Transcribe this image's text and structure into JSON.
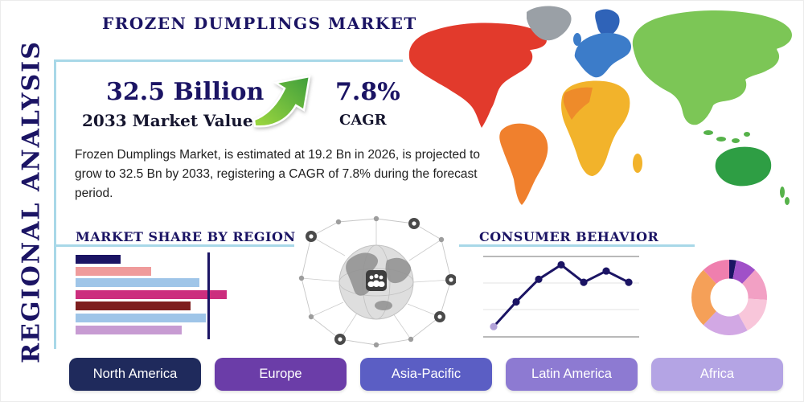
{
  "page": {
    "vertical_label": "REGIONAL ANALYSIS",
    "title": "FROZEN DUMPLINGS MARKET",
    "accent_line_color": "#a8d8e8",
    "brand_navy": "#1b1464"
  },
  "stats": {
    "market_value": "32.5 Billion",
    "market_value_label": "2033 Market Value",
    "cagr_value": "7.8%",
    "cagr_label": "CAGR",
    "description": "Frozen Dumplings Market, is estimated at 19.2 Bn in 2026, is projected to grow to 32.5 Bn by 2033, registering a CAGR of 7.8% during the forecast period."
  },
  "icons": {
    "growth_arrow": "curved-up-right-green-arrow",
    "globe_network": "globe-with-connected-location-pins"
  },
  "sections": {
    "market_share_heading": "MARKET SHARE BY REGION",
    "consumer_behavior_heading": "CONSUMER BEHAVIOR"
  },
  "chart_data": [
    {
      "type": "bar",
      "title": "MARKET SHARE BY REGION",
      "orientation": "horizontal",
      "values": [
        30,
        50,
        82,
        100,
        76,
        86,
        70
      ],
      "value_unit": "relative length, percent of longest bar (axis unlabeled in source)",
      "colors": [
        "#1b1464",
        "#ef9b9b",
        "#9fc5e8",
        "#cc2e7e",
        "#7e1f1f",
        "#9fc5e8",
        "#c79bd2"
      ],
      "grid": false
    },
    {
      "type": "line",
      "title": "CONSUMER BEHAVIOR",
      "x": [
        1,
        2,
        3,
        4,
        5,
        6,
        7
      ],
      "values": [
        1.0,
        3.4,
        5.6,
        7.0,
        5.3,
        6.4,
        5.3
      ],
      "ylim": [
        0,
        7.5
      ],
      "color": "#1b1464",
      "first_point_color": "#b2a2d8",
      "grid": true,
      "note": "axes unlabeled in source; values estimated from point heights"
    },
    {
      "type": "pie",
      "donut": true,
      "values": [
        3,
        9,
        14,
        16,
        20,
        26,
        12
      ],
      "colors": [
        "#1b1464",
        "#a050c8",
        "#f2a0c4",
        "#f8c6da",
        "#d2a8e4",
        "#f5a058",
        "#ef7fae"
      ],
      "start_angle_deg": -90,
      "note": "slices unlabeled in source; percentages estimated"
    }
  ],
  "buttons": [
    {
      "label": "North America",
      "color": "#1f2a5c"
    },
    {
      "label": "Europe",
      "color": "#6b3da8"
    },
    {
      "label": "Asia-Pacific",
      "color": "#5b5ec4"
    },
    {
      "label": "Latin America",
      "color": "#8d7ad2"
    },
    {
      "label": "Africa",
      "color": "#b4a4e4"
    }
  ],
  "map": {
    "regions": {
      "north_america": "#e23a2c",
      "greenland": "#9aa0a6",
      "south_america": "#f0802d",
      "europe": "#3c7cc9",
      "scandinavia": "#2f63b8",
      "west_africa": "#ee8b2a",
      "africa": "#f2b32b",
      "asia": "#7cc656",
      "islands": "#56b24a",
      "australia": "#2e9e44"
    }
  }
}
